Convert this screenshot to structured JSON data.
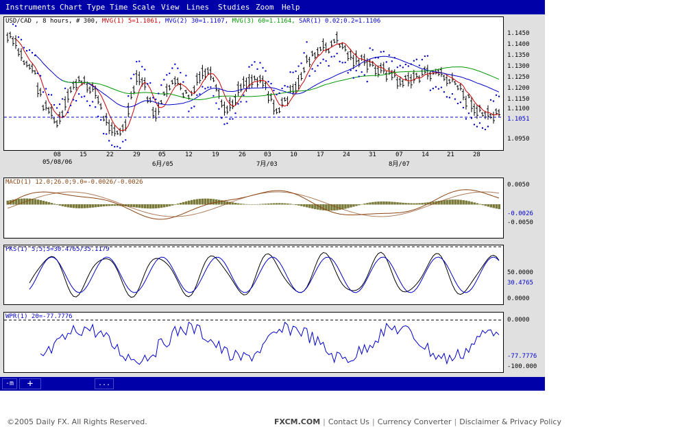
{
  "menu": [
    {
      "label": "Instruments"
    },
    {
      "label": "Chart Type"
    },
    {
      "label": "Time Scale"
    },
    {
      "label": "View"
    },
    {
      "label": "Lines"
    },
    {
      "label": "Studies"
    },
    {
      "label": "Zoom"
    },
    {
      "label": "Help"
    }
  ],
  "price_panel": {
    "symbol": "USD/CAD , 8 hours, # 300,",
    "mvg1": "MVG(1) 5=1.1061,",
    "mvg2": "MVG(2) 30=1.1107,",
    "mvg3": "MVG(3) 60=1.1164,",
    "sar": "SAR(1) 0.02;0.2=1.1106",
    "y_ticks": [
      "1.1450",
      "1.1400",
      "1.1350",
      "1.1300",
      "1.1250",
      "1.1200",
      "1.1150",
      "1.1100",
      "1.1051",
      "1.0950"
    ],
    "current": "1.1051",
    "x_ticks": [
      "08",
      "15",
      "22",
      "29",
      "05",
      "12",
      "19",
      "26",
      "03",
      "10",
      "17",
      "24",
      "31",
      "07",
      "14",
      "21",
      "28"
    ],
    "x_dates": [
      "05/08/06",
      "6月/05",
      "7月/03",
      "8月/07"
    ],
    "colors": {
      "bars": "#000000",
      "mvg1": "#cc0000",
      "mvg2": "#0000cc",
      "mvg3": "#009900",
      "sar": "#0000cc",
      "ref": "#0000cc"
    }
  },
  "macd_panel": {
    "title": "MACD(1) 12.0;26.0;9.0=-0.0026/-0.0026",
    "y_ticks": [
      "0.0050",
      "-0.0026",
      "-0.0050"
    ],
    "colors": {
      "hist": "#7a7a3a",
      "macd": "#8b4513",
      "signal": "#8b4513"
    }
  },
  "pks_panel": {
    "title": "PKS(1) 5;5;5=30.4765/35.1179",
    "y_ticks": [
      "50.0000",
      "30.4765",
      "0.0000"
    ],
    "colors": {
      "k": "#000000",
      "d": "#0000cc"
    }
  },
  "wpr_panel": {
    "title": "WPR(1) 20=-77.7776",
    "y_ticks": [
      "0.0000",
      "-77.7776",
      "-100.000"
    ],
    "colors": {
      "line": "#0000cc"
    }
  },
  "toolbar": {
    "tool1": "-m",
    "tool2": "+",
    "tool3": "..."
  },
  "footer": {
    "copyright": "©2005 Daily FX. All Rights Reserved.",
    "brand": "FXCM.COM",
    "links": [
      "Contact Us",
      "Currency Converter",
      "Disclaimer & Privacy Policy"
    ]
  }
}
